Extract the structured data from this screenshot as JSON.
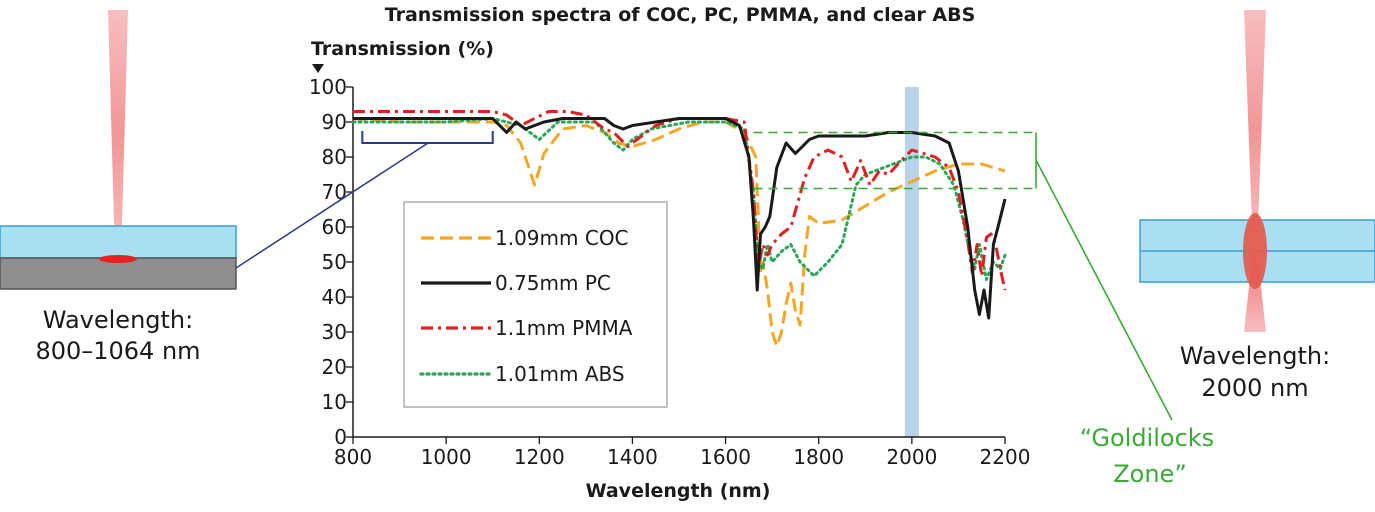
{
  "chart_data": {
    "type": "line",
    "title": "Transmission spectra of COC, PC, PMMA, and clear ABS",
    "xlabel": "Wavelength (nm)",
    "ylabel": "Transmission (%)",
    "xlim": [
      800,
      2200
    ],
    "ylim": [
      0,
      100
    ],
    "x_ticks": [
      "800",
      "1000",
      "1200",
      "1400",
      "1600",
      "1800",
      "2000",
      "2200"
    ],
    "y_ticks": [
      "0",
      "10",
      "20",
      "30",
      "40",
      "50",
      "60",
      "70",
      "80",
      "90",
      "100"
    ],
    "legend_position": "lower-left inside plot",
    "highlight_band": {
      "x_range": [
        1985,
        2015
      ],
      "color": "#b9d3ea"
    },
    "laser_range_bracket": {
      "x_range": [
        820,
        1100
      ],
      "y": 84,
      "color": "#2b3990"
    },
    "goldilocks_box": {
      "x_range": [
        1660,
        2280
      ],
      "y_range": [
        71,
        87
      ],
      "color": "#3aaa35"
    },
    "series": [
      {
        "name": "1.09mm COC",
        "color": "#f5a623",
        "style": "dashed",
        "x": [
          800,
          900,
          1000,
          1100,
          1130,
          1160,
          1190,
          1210,
          1250,
          1300,
          1340,
          1370,
          1400,
          1450,
          1500,
          1550,
          1600,
          1640,
          1665,
          1675,
          1680,
          1690,
          1700,
          1710,
          1720,
          1730,
          1740,
          1750,
          1760,
          1770,
          1780,
          1790,
          1800,
          1850,
          1900,
          1950,
          2000,
          2050,
          2100,
          2150,
          2200
        ],
        "values": [
          91,
          90,
          90,
          90,
          89,
          84,
          72,
          81,
          88,
          89,
          87,
          84,
          83,
          85,
          88,
          90,
          90,
          87,
          80,
          47,
          50,
          42,
          30,
          26,
          30,
          38,
          44,
          36,
          32,
          52,
          63,
          62,
          61,
          62,
          66,
          70,
          73,
          76,
          78,
          78,
          76
        ]
      },
      {
        "name": "0.75mm PC",
        "color": "#1a1a1a",
        "style": "solid",
        "x": [
          800,
          900,
          1000,
          1100,
          1130,
          1150,
          1170,
          1190,
          1210,
          1250,
          1300,
          1340,
          1360,
          1380,
          1400,
          1450,
          1500,
          1550,
          1600,
          1630,
          1650,
          1660,
          1668,
          1675,
          1685,
          1695,
          1710,
          1730,
          1750,
          1780,
          1800,
          1850,
          1900,
          1950,
          2000,
          2050,
          2080,
          2100,
          2120,
          2135,
          2145,
          2155,
          2165,
          2175,
          2185,
          2200
        ],
        "values": [
          91,
          91,
          91,
          91,
          87,
          90,
          88,
          89,
          90,
          91,
          91,
          91,
          89,
          88,
          89,
          90,
          91,
          91,
          91,
          89,
          80,
          62,
          42,
          58,
          60,
          63,
          77,
          84,
          81,
          85,
          86,
          86,
          86,
          87,
          87,
          86,
          84,
          76,
          60,
          42,
          35,
          42,
          34,
          55,
          60,
          68
        ]
      },
      {
        "name": "1.1mm PMMA",
        "color": "#e02020",
        "style": "dashdot",
        "x": [
          800,
          900,
          1000,
          1100,
          1130,
          1160,
          1190,
          1220,
          1260,
          1300,
          1340,
          1360,
          1390,
          1420,
          1450,
          1500,
          1550,
          1600,
          1640,
          1660,
          1670,
          1680,
          1690,
          1700,
          1720,
          1740,
          1770,
          1790,
          1820,
          1850,
          1870,
          1890,
          1910,
          1930,
          1950,
          1970,
          2000,
          2050,
          2080,
          2100,
          2120,
          2130,
          2140,
          2150,
          2160,
          2170,
          2180,
          2190,
          2200
        ],
        "values": [
          93,
          93,
          93,
          93,
          92,
          89,
          91,
          93,
          93,
          92,
          88,
          87,
          83,
          86,
          89,
          91,
          91,
          91,
          90,
          70,
          48,
          55,
          52,
          55,
          58,
          60,
          74,
          80,
          82,
          80,
          73,
          79,
          72,
          76,
          75,
          78,
          82,
          80,
          77,
          70,
          56,
          47,
          55,
          46,
          57,
          58,
          55,
          48,
          42
        ]
      },
      {
        "name": "1.01mm ABS",
        "color": "#2ca55a",
        "style": "dotted",
        "x": [
          800,
          900,
          1000,
          1100,
          1130,
          1160,
          1200,
          1240,
          1280,
          1320,
          1360,
          1380,
          1400,
          1440,
          1480,
          1520,
          1560,
          1600,
          1640,
          1660,
          1670,
          1680,
          1690,
          1700,
          1720,
          1740,
          1760,
          1790,
          1820,
          1850,
          1880,
          1900,
          1920,
          1940,
          1960,
          1980,
          2000,
          2030,
          2060,
          2090,
          2110,
          2125,
          2135,
          2145,
          2160,
          2175,
          2190,
          2200
        ],
        "values": [
          90,
          90,
          90,
          91,
          90,
          89,
          85,
          90,
          90,
          90,
          84,
          82,
          85,
          88,
          89,
          90,
          90,
          90,
          88,
          70,
          50,
          48,
          55,
          50,
          53,
          55,
          50,
          46,
          50,
          55,
          72,
          75,
          76,
          77,
          78,
          79,
          80,
          80,
          78,
          72,
          62,
          52,
          48,
          55,
          45,
          50,
          48,
          52
        ]
      }
    ]
  },
  "left_panel": {
    "label_line1": "Wavelength:",
    "label_line2": "800–1064 nm"
  },
  "right_panel": {
    "label_line1": "Wavelength:",
    "label_line2": "2000 nm"
  },
  "goldilocks_label": {
    "line1": "“Goldilocks",
    "line2": "Zone”"
  }
}
